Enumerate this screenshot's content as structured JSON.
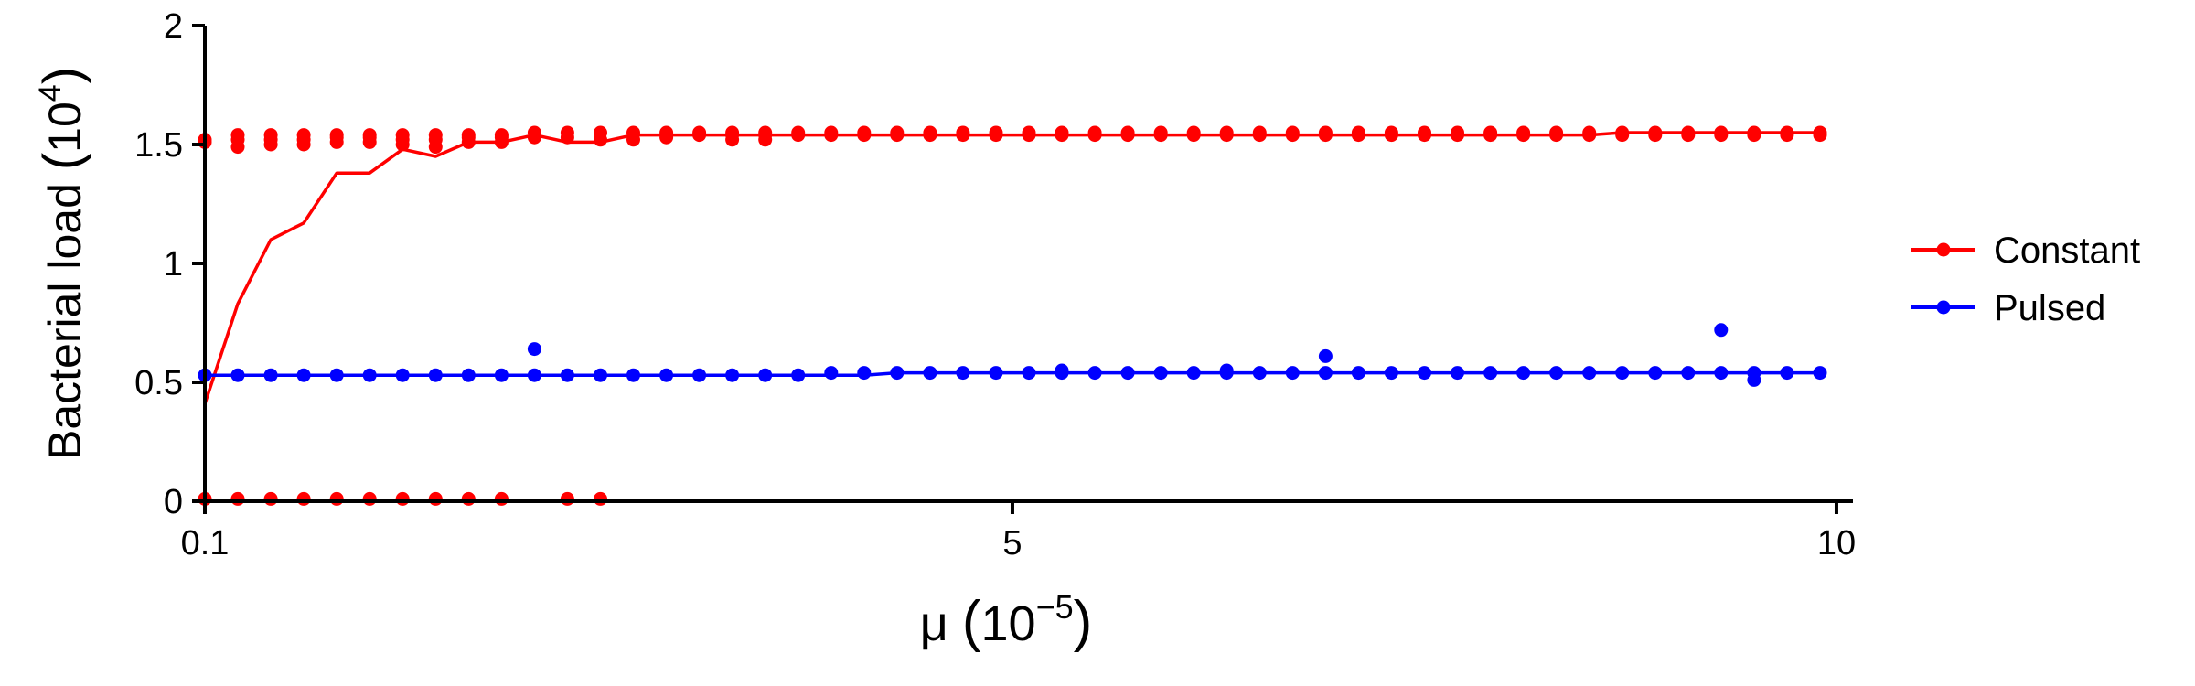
{
  "chart_data": {
    "type": "scatter",
    "xlabel": "μ (10−5)",
    "xlabel_parts": {
      "symbol": "μ",
      "base": "10",
      "exponent": "−5"
    },
    "ylabel": "Bacterial load (104)",
    "ylabel_parts": {
      "text": "Bacterial load",
      "base": "10",
      "exponent": "4"
    },
    "xlim": [
      0.1,
      10.1
    ],
    "ylim": [
      0,
      2
    ],
    "x_ticks": [
      0.1,
      5,
      10
    ],
    "x_tick_labels": [
      "0.1",
      "5",
      "10"
    ],
    "y_ticks": [
      0,
      0.5,
      1,
      1.5,
      2
    ],
    "y_tick_labels": [
      "0",
      "0.5",
      "1",
      "1.5",
      "2"
    ],
    "grid": false,
    "legend_position": "right",
    "series": [
      {
        "name": "Constant",
        "color": "#ff0000",
        "points": [
          [
            0.1,
            1.52
          ],
          [
            0.1,
            1.51
          ],
          [
            0.1,
            0.01
          ],
          [
            0.3,
            1.54
          ],
          [
            0.3,
            1.52
          ],
          [
            0.3,
            1.49
          ],
          [
            0.3,
            0.01
          ],
          [
            0.5,
            1.54
          ],
          [
            0.5,
            1.52
          ],
          [
            0.5,
            1.5
          ],
          [
            0.5,
            0.01
          ],
          [
            0.7,
            1.54
          ],
          [
            0.7,
            1.52
          ],
          [
            0.7,
            1.5
          ],
          [
            0.7,
            0.01
          ],
          [
            0.9,
            1.54
          ],
          [
            0.9,
            1.53
          ],
          [
            0.9,
            1.51
          ],
          [
            0.9,
            0.01
          ],
          [
            1.1,
            1.54
          ],
          [
            1.1,
            1.53
          ],
          [
            1.1,
            1.51
          ],
          [
            1.1,
            0.01
          ],
          [
            1.3,
            1.54
          ],
          [
            1.3,
            1.52
          ],
          [
            1.3,
            1.5
          ],
          [
            1.3,
            0.01
          ],
          [
            1.5,
            1.54
          ],
          [
            1.5,
            1.52
          ],
          [
            1.5,
            1.49
          ],
          [
            1.5,
            0.01
          ],
          [
            1.7,
            1.54
          ],
          [
            1.7,
            1.53
          ],
          [
            1.7,
            1.51
          ],
          [
            1.7,
            0.01
          ],
          [
            1.9,
            1.54
          ],
          [
            1.9,
            1.53
          ],
          [
            1.9,
            1.51
          ],
          [
            1.9,
            0.01
          ],
          [
            2.1,
            1.55
          ],
          [
            2.1,
            1.53
          ],
          [
            2.3,
            1.55
          ],
          [
            2.3,
            1.53
          ],
          [
            2.3,
            0.01
          ],
          [
            2.5,
            1.55
          ],
          [
            2.5,
            1.52
          ],
          [
            2.5,
            0.01
          ],
          [
            2.7,
            1.55
          ],
          [
            2.7,
            1.52
          ],
          [
            2.9,
            1.55
          ],
          [
            2.9,
            1.53
          ],
          [
            3.1,
            1.55
          ],
          [
            3.1,
            1.54
          ],
          [
            3.3,
            1.55
          ],
          [
            3.3,
            1.54
          ],
          [
            3.3,
            1.52
          ],
          [
            3.5,
            1.55
          ],
          [
            3.5,
            1.54
          ],
          [
            3.5,
            1.52
          ],
          [
            3.7,
            1.55
          ],
          [
            3.7,
            1.54
          ],
          [
            3.9,
            1.55
          ],
          [
            3.9,
            1.54
          ],
          [
            4.1,
            1.55
          ],
          [
            4.1,
            1.54
          ],
          [
            4.3,
            1.55
          ],
          [
            4.3,
            1.54
          ],
          [
            4.5,
            1.55
          ],
          [
            4.5,
            1.54
          ],
          [
            4.7,
            1.55
          ],
          [
            4.7,
            1.54
          ],
          [
            4.9,
            1.55
          ],
          [
            4.9,
            1.54
          ],
          [
            5.1,
            1.55
          ],
          [
            5.1,
            1.54
          ],
          [
            5.3,
            1.55
          ],
          [
            5.3,
            1.54
          ],
          [
            5.5,
            1.55
          ],
          [
            5.5,
            1.54
          ],
          [
            5.7,
            1.55
          ],
          [
            5.7,
            1.54
          ],
          [
            5.9,
            1.55
          ],
          [
            5.9,
            1.54
          ],
          [
            6.1,
            1.55
          ],
          [
            6.1,
            1.54
          ],
          [
            6.3,
            1.55
          ],
          [
            6.3,
            1.54
          ],
          [
            6.5,
            1.55
          ],
          [
            6.5,
            1.54
          ],
          [
            6.7,
            1.55
          ],
          [
            6.7,
            1.54
          ],
          [
            6.9,
            1.55
          ],
          [
            6.9,
            1.54
          ],
          [
            7.1,
            1.55
          ],
          [
            7.1,
            1.54
          ],
          [
            7.3,
            1.55
          ],
          [
            7.3,
            1.54
          ],
          [
            7.5,
            1.55
          ],
          [
            7.5,
            1.54
          ],
          [
            7.7,
            1.55
          ],
          [
            7.7,
            1.54
          ],
          [
            7.9,
            1.55
          ],
          [
            7.9,
            1.54
          ],
          [
            8.1,
            1.55
          ],
          [
            8.1,
            1.54
          ],
          [
            8.3,
            1.55
          ],
          [
            8.3,
            1.54
          ],
          [
            8.5,
            1.55
          ],
          [
            8.5,
            1.54
          ],
          [
            8.7,
            1.55
          ],
          [
            8.7,
            1.54
          ],
          [
            8.9,
            1.55
          ],
          [
            8.9,
            1.54
          ],
          [
            9.1,
            1.55
          ],
          [
            9.1,
            1.54
          ],
          [
            9.3,
            1.55
          ],
          [
            9.3,
            1.54
          ],
          [
            9.5,
            1.55
          ],
          [
            9.5,
            1.54
          ],
          [
            9.7,
            1.55
          ],
          [
            9.7,
            1.54
          ],
          [
            9.9,
            1.55
          ],
          [
            9.9,
            1.54
          ]
        ],
        "line": [
          [
            0.1,
            0.41
          ],
          [
            0.3,
            0.83
          ],
          [
            0.5,
            1.1
          ],
          [
            0.7,
            1.17
          ],
          [
            0.9,
            1.38
          ],
          [
            1.1,
            1.38
          ],
          [
            1.3,
            1.48
          ],
          [
            1.5,
            1.45
          ],
          [
            1.7,
            1.51
          ],
          [
            1.9,
            1.51
          ],
          [
            2.1,
            1.54
          ],
          [
            2.3,
            1.51
          ],
          [
            2.5,
            1.51
          ],
          [
            2.7,
            1.54
          ],
          [
            2.9,
            1.54
          ],
          [
            3.1,
            1.54
          ],
          [
            3.3,
            1.54
          ],
          [
            3.5,
            1.54
          ],
          [
            3.7,
            1.54
          ],
          [
            3.9,
            1.54
          ],
          [
            4.1,
            1.54
          ],
          [
            4.3,
            1.54
          ],
          [
            4.5,
            1.54
          ],
          [
            4.7,
            1.54
          ],
          [
            4.9,
            1.54
          ],
          [
            5.1,
            1.54
          ],
          [
            5.3,
            1.54
          ],
          [
            5.5,
            1.54
          ],
          [
            5.7,
            1.54
          ],
          [
            5.9,
            1.54
          ],
          [
            6.1,
            1.54
          ],
          [
            6.3,
            1.54
          ],
          [
            6.5,
            1.54
          ],
          [
            6.7,
            1.54
          ],
          [
            6.9,
            1.54
          ],
          [
            7.1,
            1.54
          ],
          [
            7.3,
            1.54
          ],
          [
            7.5,
            1.54
          ],
          [
            7.7,
            1.54
          ],
          [
            7.9,
            1.54
          ],
          [
            8.1,
            1.54
          ],
          [
            8.3,
            1.54
          ],
          [
            8.5,
            1.54
          ],
          [
            8.7,
            1.55
          ],
          [
            8.9,
            1.55
          ],
          [
            9.1,
            1.55
          ],
          [
            9.3,
            1.55
          ],
          [
            9.5,
            1.55
          ],
          [
            9.7,
            1.55
          ],
          [
            9.9,
            1.55
          ]
        ]
      },
      {
        "name": "Pulsed",
        "color": "#0000ff",
        "points": [
          [
            0.1,
            0.53
          ],
          [
            0.3,
            0.53
          ],
          [
            0.5,
            0.53
          ],
          [
            0.7,
            0.53
          ],
          [
            0.9,
            0.53
          ],
          [
            1.1,
            0.53
          ],
          [
            1.3,
            0.53
          ],
          [
            1.5,
            0.53
          ],
          [
            1.7,
            0.53
          ],
          [
            1.9,
            0.53
          ],
          [
            2.1,
            0.64
          ],
          [
            2.1,
            0.53
          ],
          [
            2.3,
            0.53
          ],
          [
            2.5,
            0.53
          ],
          [
            2.7,
            0.53
          ],
          [
            2.9,
            0.53
          ],
          [
            3.1,
            0.53
          ],
          [
            3.3,
            0.53
          ],
          [
            3.5,
            0.53
          ],
          [
            3.7,
            0.53
          ],
          [
            3.9,
            0.54
          ],
          [
            4.1,
            0.54
          ],
          [
            4.3,
            0.54
          ],
          [
            4.5,
            0.54
          ],
          [
            4.7,
            0.54
          ],
          [
            4.9,
            0.54
          ],
          [
            5.1,
            0.54
          ],
          [
            5.3,
            0.55
          ],
          [
            5.3,
            0.54
          ],
          [
            5.5,
            0.54
          ],
          [
            5.7,
            0.54
          ],
          [
            5.9,
            0.54
          ],
          [
            6.1,
            0.54
          ],
          [
            6.3,
            0.55
          ],
          [
            6.3,
            0.54
          ],
          [
            6.5,
            0.54
          ],
          [
            6.7,
            0.54
          ],
          [
            6.9,
            0.61
          ],
          [
            6.9,
            0.54
          ],
          [
            7.1,
            0.54
          ],
          [
            7.3,
            0.54
          ],
          [
            7.5,
            0.54
          ],
          [
            7.7,
            0.54
          ],
          [
            7.9,
            0.54
          ],
          [
            8.1,
            0.54
          ],
          [
            8.3,
            0.54
          ],
          [
            8.5,
            0.54
          ],
          [
            8.7,
            0.54
          ],
          [
            8.9,
            0.54
          ],
          [
            9.1,
            0.54
          ],
          [
            9.3,
            0.72
          ],
          [
            9.3,
            0.54
          ],
          [
            9.5,
            0.54
          ],
          [
            9.5,
            0.51
          ],
          [
            9.7,
            0.54
          ],
          [
            9.9,
            0.54
          ]
        ],
        "line": [
          [
            0.1,
            0.53
          ],
          [
            0.3,
            0.53
          ],
          [
            0.5,
            0.53
          ],
          [
            0.7,
            0.53
          ],
          [
            0.9,
            0.53
          ],
          [
            1.1,
            0.53
          ],
          [
            1.3,
            0.53
          ],
          [
            1.5,
            0.53
          ],
          [
            1.7,
            0.53
          ],
          [
            1.9,
            0.53
          ],
          [
            2.1,
            0.53
          ],
          [
            2.3,
            0.53
          ],
          [
            2.5,
            0.53
          ],
          [
            2.7,
            0.53
          ],
          [
            2.9,
            0.53
          ],
          [
            3.1,
            0.53
          ],
          [
            3.3,
            0.53
          ],
          [
            3.5,
            0.53
          ],
          [
            3.7,
            0.53
          ],
          [
            3.9,
            0.53
          ],
          [
            4.1,
            0.53
          ],
          [
            4.3,
            0.54
          ],
          [
            4.5,
            0.54
          ],
          [
            4.7,
            0.54
          ],
          [
            4.9,
            0.54
          ],
          [
            5.1,
            0.54
          ],
          [
            5.3,
            0.54
          ],
          [
            5.5,
            0.54
          ],
          [
            5.7,
            0.54
          ],
          [
            5.9,
            0.54
          ],
          [
            6.1,
            0.54
          ],
          [
            6.3,
            0.54
          ],
          [
            6.5,
            0.54
          ],
          [
            6.7,
            0.54
          ],
          [
            6.9,
            0.54
          ],
          [
            7.1,
            0.54
          ],
          [
            7.3,
            0.54
          ],
          [
            7.5,
            0.54
          ],
          [
            7.7,
            0.54
          ],
          [
            7.9,
            0.54
          ],
          [
            8.1,
            0.54
          ],
          [
            8.3,
            0.54
          ],
          [
            8.5,
            0.54
          ],
          [
            8.7,
            0.54
          ],
          [
            8.9,
            0.54
          ],
          [
            9.1,
            0.54
          ],
          [
            9.3,
            0.54
          ],
          [
            9.5,
            0.54
          ],
          [
            9.7,
            0.54
          ],
          [
            9.9,
            0.54
          ]
        ]
      }
    ]
  }
}
